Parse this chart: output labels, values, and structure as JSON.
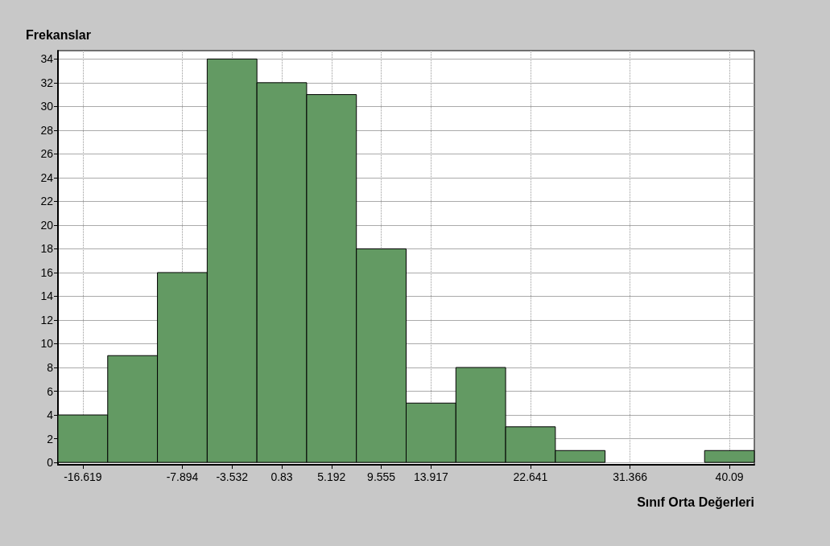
{
  "chart_data": {
    "type": "histogram",
    "xlabel": "Sınıf Orta Değerleri",
    "ylabel": "Frekanslar",
    "bins": [
      -18.8,
      -14.438,
      -10.076,
      -5.713,
      -1.351,
      3.011,
      7.373,
      11.736,
      16.098,
      20.46,
      24.822,
      29.184,
      33.547,
      37.909,
      42.271
    ],
    "values": [
      4,
      9,
      16,
      34,
      32,
      31,
      18,
      5,
      8,
      3,
      1,
      0,
      0,
      1
    ],
    "color": "#639a63",
    "xlim": [
      -18.8,
      42.271
    ],
    "xticks": [
      -16.619,
      -7.894,
      -3.532,
      0.83,
      5.192,
      9.555,
      13.917,
      22.641,
      31.366,
      40.09
    ],
    "ylim": [
      -0.2,
      34.7
    ],
    "yticks": [
      0,
      2,
      4,
      6,
      8,
      10,
      12,
      14,
      16,
      18,
      20,
      22,
      24,
      26,
      28,
      30,
      32,
      34
    ],
    "grid": true
  }
}
